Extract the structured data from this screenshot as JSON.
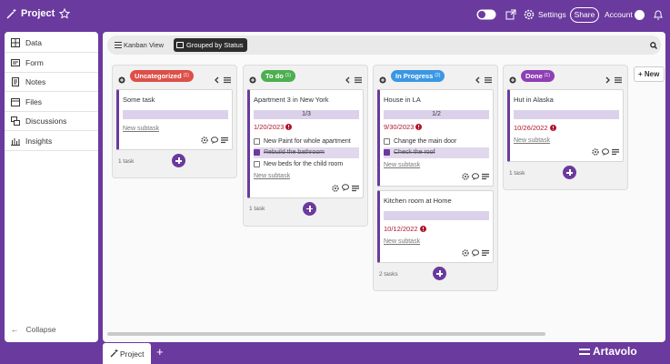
{
  "header": {
    "title": "Project",
    "settings": "Settings",
    "share": "Share",
    "account": "Account"
  },
  "sidebar": {
    "items": [
      "Data",
      "Form",
      "Notes",
      "Files",
      "Discussions",
      "Insights"
    ],
    "collapse": "Collapse"
  },
  "toolbar": {
    "view": "Kanban View",
    "group": "Grouped by Status"
  },
  "columns": [
    {
      "label": "Uncategorized",
      "count": "(1)",
      "color": "#dd4f48",
      "arrow": "left",
      "footer": "1 task",
      "cards": [
        {
          "title": "Some task",
          "new_subtask": "New subtask"
        }
      ]
    },
    {
      "label": "To do",
      "count": "(1)",
      "color": "#4caf50",
      "arrow": "left",
      "footer": "1 task",
      "cards": [
        {
          "title": "Apartment 3 in New York",
          "progress": "1/3",
          "date": "1/20/2023",
          "subtasks": [
            {
              "text": "New Paint for whole apartment",
              "done": false
            },
            {
              "text": "Rebuild the bathroom",
              "done": true
            },
            {
              "text": "New beds for the child room",
              "done": false
            }
          ],
          "new_subtask": "New subtask"
        }
      ]
    },
    {
      "label": "In Progress",
      "count": "(2)",
      "color": "#3b97e3",
      "arrow": "left",
      "footer": "2 tasks",
      "cards": [
        {
          "title": "House in LA",
          "progress": "1/2",
          "date": "9/30/2023",
          "subtasks": [
            {
              "text": "Change the main door",
              "done": false
            },
            {
              "text": "Check the roof",
              "done": true
            }
          ],
          "new_subtask": "New subtask"
        },
        {
          "title": "Kitchen room at Home",
          "date": "10/12/2022",
          "new_subtask": "New subtask"
        }
      ]
    },
    {
      "label": "Done",
      "count": "(1)",
      "color": "#8e3fb5",
      "arrow": "right",
      "footer": "1 task",
      "cards": [
        {
          "title": "Hut in Alaska",
          "date": "10/26/2022",
          "new_subtask": "New subtask"
        }
      ]
    }
  ],
  "new_column": "+ New",
  "footer": {
    "tab": "Project",
    "brand": "Artavolo"
  }
}
